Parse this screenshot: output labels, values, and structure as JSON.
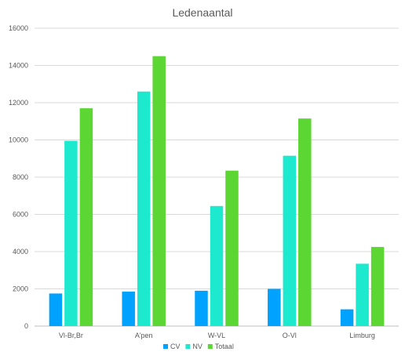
{
  "chart_data": {
    "type": "bar",
    "title": "Ledenaantal",
    "categories": [
      "Vl-Br,Br",
      "A'pen",
      "W-VL",
      "O-Vl",
      "Limburg"
    ],
    "series": [
      {
        "name": "CV",
        "color": "#00a2ff",
        "values": [
          1750,
          1850,
          1900,
          2000,
          900
        ]
      },
      {
        "name": "NV",
        "color": "#1de9cf",
        "values": [
          9950,
          12600,
          6450,
          9150,
          3350
        ]
      },
      {
        "name": "Totaal",
        "color": "#5bd633",
        "values": [
          11700,
          14500,
          8350,
          11150,
          4250
        ]
      }
    ],
    "y_ticks": [
      "0",
      "2000",
      "4000",
      "6000",
      "8000",
      "10000",
      "12000",
      "14000",
      "16000"
    ],
    "ylim": [
      0,
      16000
    ],
    "grid": true,
    "legend_position": "bottom-center"
  }
}
